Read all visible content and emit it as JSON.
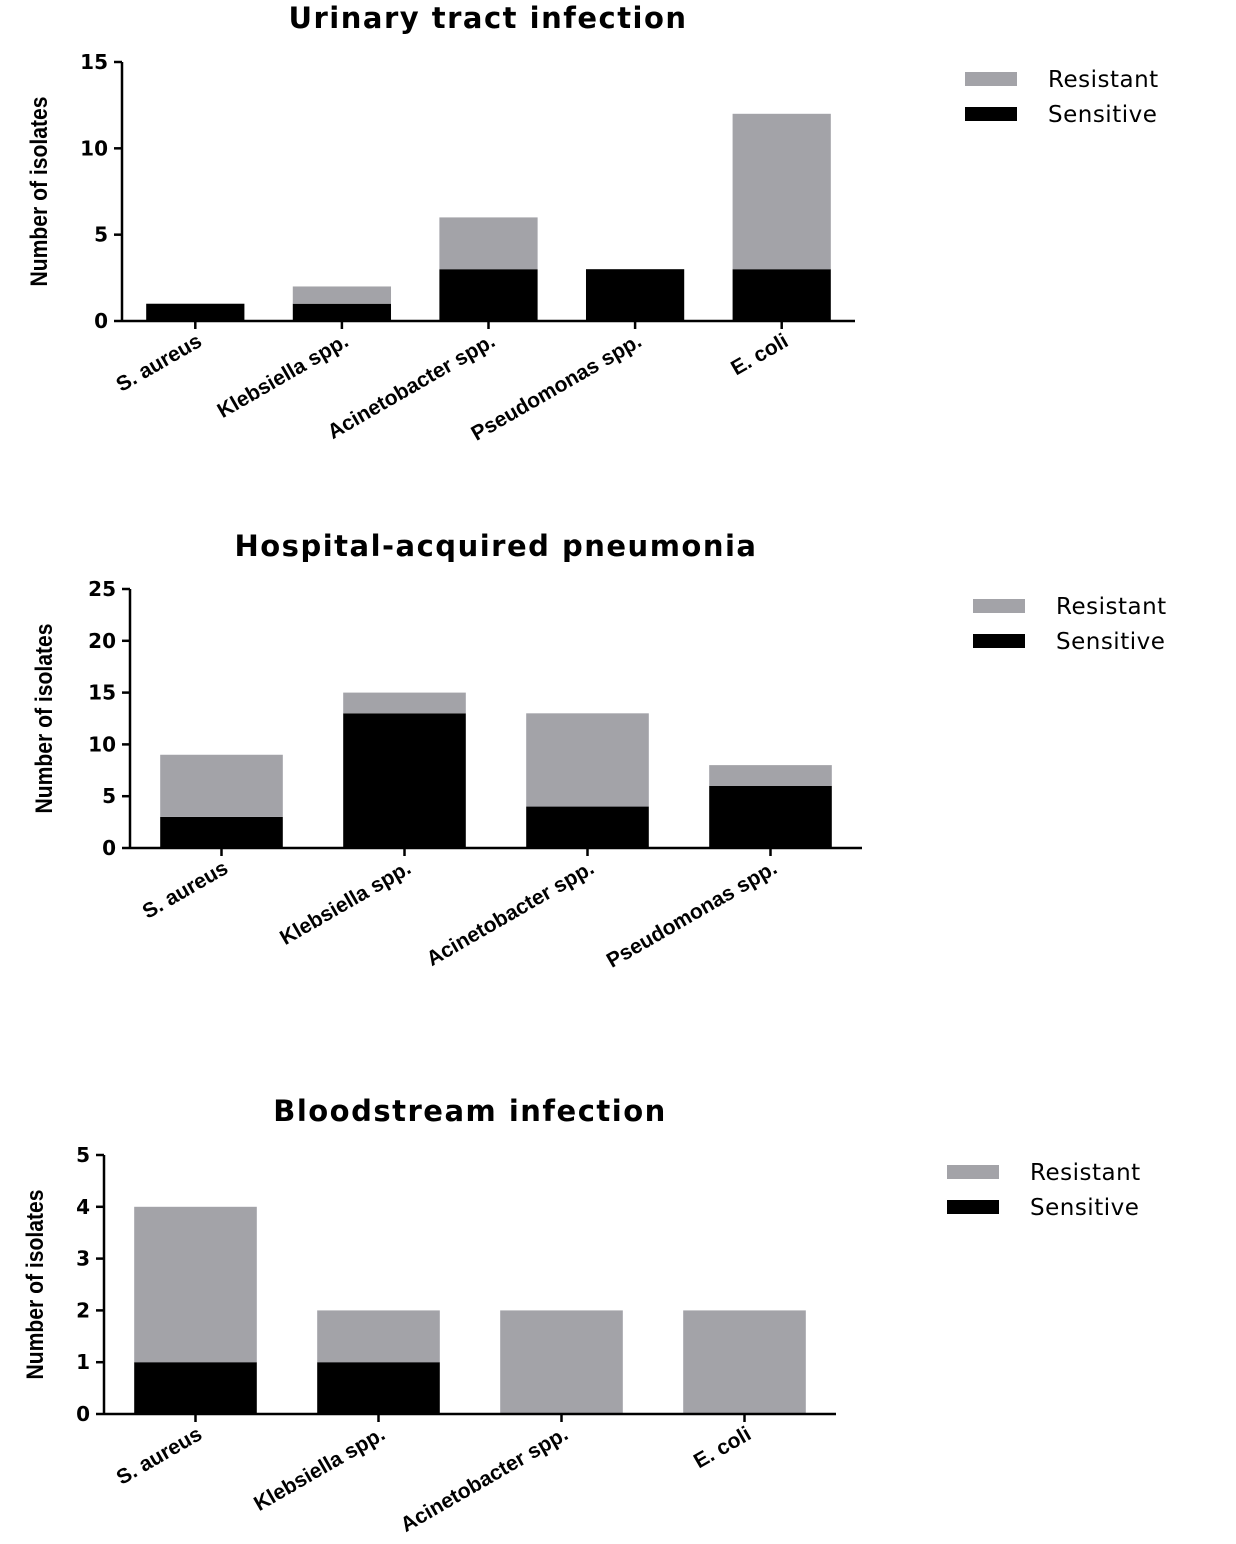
{
  "chart_data": [
    {
      "type": "bar",
      "stacked": true,
      "title": "Urinary tract infection",
      "ylabel": "Number of isolates",
      "xlabel": "",
      "ylim": [
        0,
        15
      ],
      "yticks": [
        0,
        5,
        10,
        15
      ],
      "categories": [
        "S. aureus",
        "Klebsiella spp.",
        "Acinetobacter spp.",
        "Pseudomonas spp.",
        "E. coli"
      ],
      "series": [
        {
          "name": "Sensitive",
          "color": "#000000",
          "values": [
            1,
            1,
            3,
            3,
            3
          ]
        },
        {
          "name": "Resistant",
          "color": "#a3a3a8",
          "values": [
            0,
            1,
            3,
            0,
            9
          ]
        }
      ],
      "legend": [
        "Resistant",
        "Sensitive"
      ],
      "legend_position": "right"
    },
    {
      "type": "bar",
      "stacked": true,
      "title": "Hospital-acquired pneumonia",
      "ylabel": "Number of isolates",
      "xlabel": "",
      "ylim": [
        0,
        25
      ],
      "yticks": [
        0,
        5,
        10,
        15,
        20,
        25
      ],
      "categories": [
        "S. aureus",
        "Klebsiella spp.",
        "Acinetobacter spp.",
        "Pseudomonas spp."
      ],
      "series": [
        {
          "name": "Sensitive",
          "color": "#000000",
          "values": [
            3,
            13,
            4,
            6
          ]
        },
        {
          "name": "Resistant",
          "color": "#a3a3a8",
          "values": [
            6,
            2,
            9,
            2
          ]
        }
      ],
      "legend": [
        "Resistant",
        "Sensitive"
      ],
      "legend_position": "right"
    },
    {
      "type": "bar",
      "stacked": true,
      "title": "Bloodstream infection",
      "ylabel": "Number of isolates",
      "xlabel": "",
      "ylim": [
        0,
        5
      ],
      "yticks": [
        0,
        1,
        2,
        3,
        4,
        5
      ],
      "categories": [
        "S. aureus",
        "Klebsiella spp.",
        "Acinetobacter spp.",
        "E. coli"
      ],
      "series": [
        {
          "name": "Sensitive",
          "color": "#000000",
          "values": [
            1,
            1,
            0,
            0
          ]
        },
        {
          "name": "Resistant",
          "color": "#a3a3a8",
          "values": [
            3,
            1,
            2,
            2
          ]
        }
      ],
      "legend": [
        "Resistant",
        "Sensitive"
      ],
      "legend_position": "right"
    }
  ]
}
